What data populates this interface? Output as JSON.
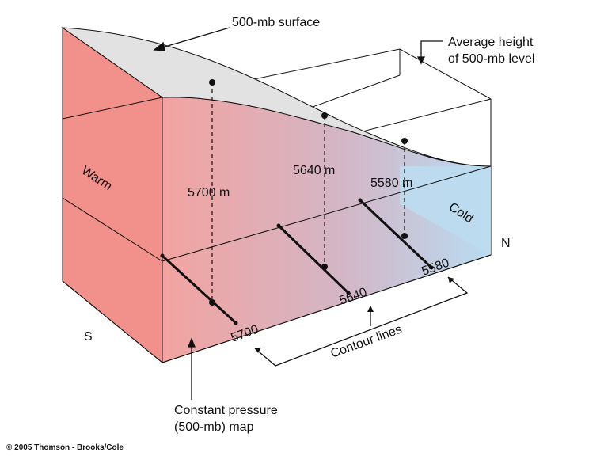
{
  "labels": {
    "surface": "500-mb surface",
    "avg_height_line1": "Average height",
    "avg_height_line2": "of 500-mb level",
    "warm": "Warm",
    "cold": "Cold",
    "south": "S",
    "north": "N",
    "contour_lines": "Contour lines",
    "map_line1": "Constant pressure",
    "map_line2": "(500-mb) map",
    "copyright": "© 2005 Thomson - Brooks/Cole"
  },
  "heights": [
    {
      "point_label": "5700 m",
      "contour_label": "5700"
    },
    {
      "point_label": "5640 m",
      "contour_label": "5640"
    },
    {
      "point_label": "5580 m",
      "contour_label": "5580"
    }
  ],
  "colors": {
    "warm": "#f28b85",
    "mid": "#d8b6c3",
    "cold": "#b8dcf2",
    "surface": "#e2e2e2",
    "line": "#111111"
  }
}
